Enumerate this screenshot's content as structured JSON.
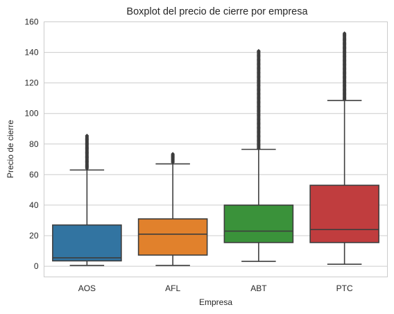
{
  "chart_data": {
    "type": "boxplot",
    "title": "Boxplot del precio de cierre por empresa",
    "xlabel": "Empresa",
    "ylabel": "Precio de cierre",
    "ylim": [
      -7,
      160
    ],
    "yticks": [
      0,
      20,
      40,
      60,
      80,
      100,
      120,
      140,
      160
    ],
    "grid": "horizontal",
    "categories": [
      "AOS",
      "AFL",
      "ABT",
      "PTC"
    ],
    "colors": [
      "#3274a1",
      "#e1812c",
      "#3a923a",
      "#c03d3e"
    ],
    "boxes": [
      {
        "name": "AOS",
        "whisker_low": 0.5,
        "q1": 3.5,
        "median": 5.5,
        "q3": 27,
        "whisker_high": 63,
        "outliers_min": 64,
        "outliers_max": 85.5
      },
      {
        "name": "AFL",
        "whisker_low": 0.5,
        "q1": 7.3,
        "median": 21,
        "q3": 31,
        "whisker_high": 67,
        "outliers_min": 68,
        "outliers_max": 73.5
      },
      {
        "name": "ABT",
        "whisker_low": 3.2,
        "q1": 15.5,
        "median": 23,
        "q3": 40,
        "whisker_high": 76.5,
        "outliers_min": 77,
        "outliers_max": 141
      },
      {
        "name": "PTC",
        "whisker_low": 1.3,
        "q1": 15.5,
        "median": 24,
        "q3": 53,
        "whisker_high": 108.5,
        "outliers_min": 109,
        "outliers_max": 152.5
      }
    ]
  }
}
